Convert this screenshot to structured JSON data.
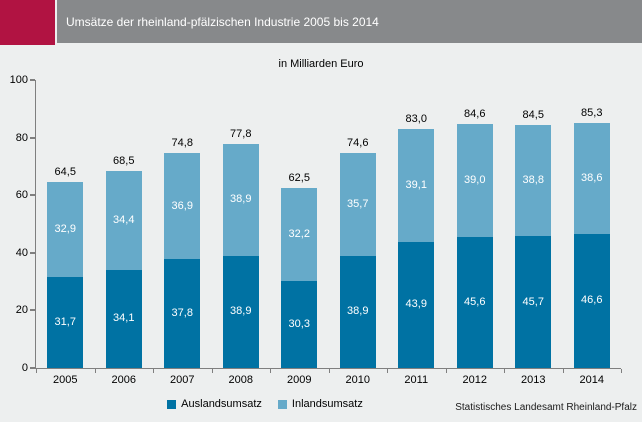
{
  "header": {
    "title": "Umsätze der rheinland-pfälzischen Industrie 2005 bis 2014"
  },
  "footer": {
    "source": "Statistisches Landesamt Rheinland-Pfalz"
  },
  "colors": {
    "brand_red": "#b11342",
    "header_gray": "#87898b",
    "page_background": "#edefef",
    "axis_gray": "#7f7f7f",
    "ausland_dark_blue": "#0072a3",
    "inland_light_blue": "#66aac9"
  },
  "chart_data": {
    "type": "bar",
    "stacked": true,
    "title": "Umsätze der rheinland-pfälzischen Industrie 2005 bis 2014",
    "subtitle": "in Milliarden Euro",
    "xlabel": "",
    "ylabel": "",
    "ylim": [
      0,
      100
    ],
    "yticks": [
      0,
      20,
      40,
      60,
      80,
      100
    ],
    "grid": false,
    "legend_position": "bottom",
    "categories": [
      "2005",
      "2006",
      "2007",
      "2008",
      "2009",
      "2010",
      "2011",
      "2012",
      "2013",
      "2014"
    ],
    "series": [
      {
        "name": "Auslandsumsatz",
        "color": "#0072a3",
        "values": [
          31.7,
          34.1,
          37.8,
          38.9,
          30.3,
          38.9,
          43.9,
          45.6,
          45.7,
          46.6
        ],
        "labels": [
          "31,7",
          "34,1",
          "37,8",
          "38,9",
          "30,3",
          "38,9",
          "43,9",
          "45,6",
          "45,7",
          "46,6"
        ]
      },
      {
        "name": "Inlandsumsatz",
        "color": "#66aac9",
        "values": [
          32.9,
          34.4,
          36.9,
          38.9,
          32.2,
          35.7,
          39.1,
          39.0,
          38.8,
          38.6
        ],
        "labels": [
          "32,9",
          "34,4",
          "36,9",
          "38,9",
          "32,2",
          "35,7",
          "39,1",
          "39,0",
          "38,8",
          "38,6"
        ]
      }
    ],
    "totals": [
      64.5,
      68.5,
      74.8,
      77.8,
      62.5,
      74.6,
      83.0,
      84.6,
      84.5,
      85.3
    ],
    "total_labels": [
      "64,5",
      "68,5",
      "74,8",
      "77,8",
      "62,5",
      "74,6",
      "83,0",
      "84,6",
      "84,5",
      "85,3"
    ],
    "legend": [
      "Auslandsumsatz",
      "Inlandsumsatz"
    ]
  }
}
